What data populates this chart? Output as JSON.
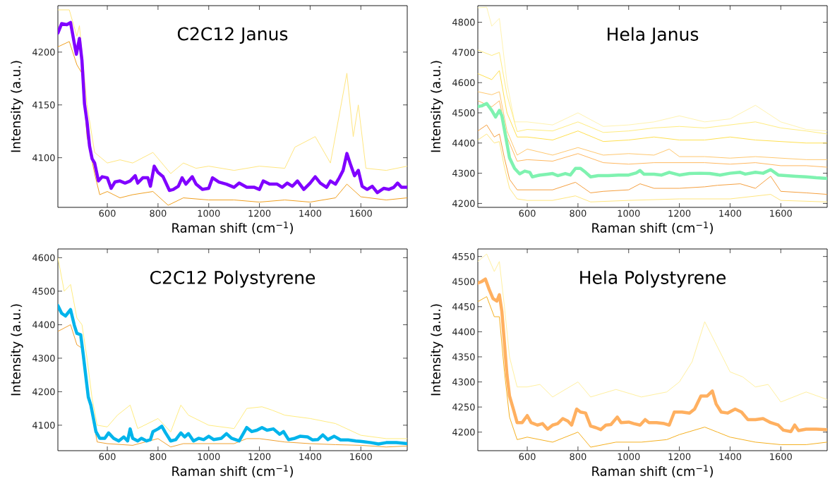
{
  "chart_data": [
    {
      "type": "line",
      "title": "C2C12 Janus",
      "xlabel": "Raman shift (cm$^{−1}$)",
      "ylabel": "Intensity (a.u.)",
      "xlim": [
        405,
        1783
      ],
      "ylim": [
        4053,
        4244
      ],
      "xticks": [
        600,
        800,
        1000,
        1200,
        1400,
        1600
      ],
      "yticks": [
        4100,
        4150,
        4200
      ],
      "x": [
        405,
        420,
        440,
        455,
        470,
        478,
        490,
        500,
        510,
        520,
        530,
        540,
        550,
        565,
        580,
        600,
        615,
        630,
        650,
        670,
        690,
        710,
        720,
        740,
        760,
        770,
        785,
        800,
        820,
        845,
        860,
        880,
        895,
        910,
        935,
        950,
        975,
        1000,
        1015,
        1040,
        1070,
        1100,
        1120,
        1150,
        1180,
        1200,
        1215,
        1240,
        1270,
        1290,
        1310,
        1330,
        1350,
        1375,
        1400,
        1420,
        1440,
        1465,
        1480,
        1500,
        1515,
        1530,
        1545,
        1560,
        1575,
        1590,
        1605,
        1625,
        1645,
        1665,
        1690,
        1710,
        1730,
        1745,
        1760,
        1783
      ],
      "series": [
        {
          "color": "#8000ff",
          "values": [
            4218,
            4227,
            4226,
            4228,
            4208,
            4198,
            4213,
            4192,
            4151,
            4134,
            4111,
            4099,
            4095,
            4078,
            4082,
            4081,
            4071,
            4077,
            4078,
            4076,
            4078,
            4083,
            4076,
            4081,
            4081,
            4073,
            4092,
            4086,
            4082,
            4069,
            4070,
            4073,
            4081,
            4075,
            4082,
            4075,
            4070,
            4071,
            4081,
            4077,
            4075,
            4072,
            4076,
            4072,
            4072,
            4070,
            4078,
            4075,
            4075,
            4072,
            4076,
            4073,
            4078,
            4070,
            4076,
            4082,
            4076,
            4072,
            4078,
            4075,
            4081,
            4088,
            4104,
            4093,
            4083,
            4088,
            4073,
            4070,
            4073,
            4067,
            4071,
            4070,
            4072,
            4076,
            4072,
            4072
          ]
        },
        {
          "color": "#ffe680",
          "x": [
            405,
            450,
            480,
            490,
            520,
            550,
            600,
            650,
            700,
            780,
            850,
            900,
            950,
            1000,
            1050,
            1100,
            1200,
            1300,
            1340,
            1420,
            1480,
            1545,
            1570,
            1590,
            1620,
            1700,
            1783
          ],
          "values": [
            4240,
            4240,
            4215,
            4225,
            4150,
            4105,
            4095,
            4098,
            4095,
            4105,
            4085,
            4095,
            4090,
            4092,
            4090,
            4088,
            4092,
            4090,
            4110,
            4120,
            4095,
            4180,
            4120,
            4150,
            4090,
            4088,
            4092
          ]
        },
        {
          "color": "#f0a020",
          "x": [
            405,
            450,
            480,
            500,
            520,
            550,
            570,
            600,
            650,
            700,
            780,
            840,
            900,
            1000,
            1100,
            1200,
            1300,
            1400,
            1500,
            1545,
            1600,
            1700,
            1783
          ],
          "values": [
            4205,
            4210,
            4188,
            4180,
            4120,
            4085,
            4065,
            4068,
            4062,
            4065,
            4068,
            4055,
            4062,
            4060,
            4060,
            4058,
            4060,
            4058,
            4062,
            4075,
            4063,
            4060,
            4062
          ]
        }
      ]
    },
    {
      "type": "line",
      "title": "Hela Janus",
      "xlabel": "Raman shift (cm$^{−1}$)",
      "ylabel": "Intensity (a.u.)",
      "xlim": [
        405,
        1783
      ],
      "ylim": [
        4187,
        4855
      ],
      "xticks": [
        600,
        800,
        1000,
        1200,
        1400,
        1600
      ],
      "yticks": [
        4200,
        4300,
        4400,
        4500,
        4600,
        4700,
        4800
      ],
      "x": [
        405,
        420,
        440,
        460,
        475,
        490,
        500,
        515,
        530,
        550,
        570,
        590,
        610,
        620,
        650,
        680,
        700,
        720,
        750,
        770,
        790,
        810,
        830,
        850,
        880,
        920,
        960,
        1000,
        1030,
        1045,
        1060,
        1100,
        1130,
        1160,
        1200,
        1240,
        1280,
        1320,
        1360,
        1400,
        1440,
        1460,
        1500,
        1530,
        1560,
        1590,
        1620,
        1660,
        1700,
        1740,
        1783
      ],
      "series": [
        {
          "color": "#7ff2b0",
          "values": [
            4521,
            4523,
            4531,
            4508,
            4486,
            4508,
            4490,
            4421,
            4351,
            4316,
            4298,
            4307,
            4303,
            4288,
            4294,
            4297,
            4299,
            4292,
            4299,
            4294,
            4316,
            4316,
            4303,
            4288,
            4292,
            4292,
            4294,
            4294,
            4301,
            4309,
            4297,
            4297,
            4294,
            4303,
            4294,
            4299,
            4300,
            4299,
            4294,
            4300,
            4303,
            4297,
            4303,
            4300,
            4312,
            4294,
            4292,
            4290,
            4288,
            4285,
            4283
          ]
        },
        {
          "color": "#fff3b0",
          "x": [
            405,
            440,
            460,
            490,
            520,
            550,
            600,
            700,
            800,
            900,
            1000,
            1100,
            1200,
            1300,
            1400,
            1500,
            1600,
            1700,
            1783
          ],
          "values": [
            4848,
            4850,
            4787,
            4813,
            4600,
            4470,
            4470,
            4460,
            4500,
            4455,
            4460,
            4470,
            4490,
            4470,
            4480,
            4525,
            4470,
            4445,
            4440
          ]
        },
        {
          "color": "#ffec80",
          "x": [
            405,
            460,
            490,
            520,
            560,
            600,
            700,
            800,
            900,
            1000,
            1100,
            1200,
            1300,
            1400,
            1500,
            1600,
            1700,
            1783
          ],
          "values": [
            4708,
            4690,
            4700,
            4560,
            4438,
            4445,
            4440,
            4470,
            4435,
            4440,
            4450,
            4455,
            4450,
            4460,
            4470,
            4450,
            4440,
            4430
          ]
        },
        {
          "color": "#ffe050",
          "x": [
            405,
            460,
            490,
            520,
            560,
            600,
            700,
            800,
            900,
            1000,
            1100,
            1200,
            1300,
            1400,
            1500,
            1600,
            1700,
            1783
          ],
          "values": [
            4630,
            4610,
            4640,
            4500,
            4420,
            4420,
            4410,
            4440,
            4405,
            4410,
            4420,
            4410,
            4410,
            4420,
            4410,
            4405,
            4400,
            4400
          ]
        },
        {
          "color": "#ffc870",
          "x": [
            405,
            460,
            490,
            520,
            560,
            600,
            700,
            800,
            900,
            1000,
            1100,
            1160,
            1200,
            1300,
            1400,
            1500,
            1600,
            1700,
            1783
          ],
          "values": [
            4570,
            4560,
            4570,
            4440,
            4360,
            4380,
            4360,
            4385,
            4360,
            4365,
            4360,
            4380,
            4355,
            4355,
            4350,
            4355,
            4350,
            4345,
            4345
          ]
        },
        {
          "color": "#ffb860",
          "x": [
            405,
            460,
            490,
            520,
            560,
            600,
            700,
            800,
            900,
            1000,
            1100,
            1200,
            1300,
            1400,
            1500,
            1600,
            1700,
            1783
          ],
          "values": [
            4540,
            4520,
            4540,
            4420,
            4340,
            4345,
            4340,
            4365,
            4335,
            4330,
            4335,
            4335,
            4335,
            4330,
            4335,
            4325,
            4325,
            4320
          ]
        },
        {
          "color": "#f5a040",
          "x": [
            405,
            440,
            470,
            490,
            510,
            530,
            560,
            600,
            700,
            790,
            850,
            900,
            1000,
            1045,
            1100,
            1200,
            1300,
            1350,
            1440,
            1500,
            1560,
            1600,
            1700,
            1783
          ],
          "values": [
            4440,
            4460,
            4420,
            4430,
            4350,
            4280,
            4245,
            4245,
            4245,
            4270,
            4235,
            4240,
            4245,
            4265,
            4250,
            4250,
            4255,
            4260,
            4265,
            4250,
            4290,
            4240,
            4235,
            4230
          ]
        },
        {
          "color": "#ffe680",
          "x": [
            405,
            440,
            470,
            490,
            510,
            530,
            560,
            600,
            700,
            790,
            850,
            1000,
            1200,
            1400,
            1560,
            1600,
            1783
          ],
          "values": [
            4410,
            4430,
            4400,
            4405,
            4320,
            4250,
            4215,
            4210,
            4210,
            4225,
            4205,
            4210,
            4215,
            4215,
            4230,
            4210,
            4205
          ]
        }
      ]
    },
    {
      "type": "line",
      "title": "C2C12 Polystyrene",
      "xlabel": "Raman shift (cm$^{−1}$)",
      "ylabel": "Intensity (a.u.)",
      "xlim": [
        405,
        1783
      ],
      "ylim": [
        4024,
        4626
      ],
      "xticks": [
        600,
        800,
        1000,
        1200,
        1400,
        1600
      ],
      "yticks": [
        4100,
        4200,
        4300,
        4400,
        4500,
        4600
      ],
      "x": [
        405,
        420,
        435,
        455,
        470,
        480,
        495,
        505,
        515,
        525,
        535,
        545,
        555,
        570,
        590,
        605,
        625,
        645,
        665,
        680,
        690,
        700,
        720,
        735,
        755,
        770,
        780,
        800,
        815,
        830,
        850,
        870,
        890,
        905,
        920,
        940,
        960,
        980,
        1000,
        1020,
        1050,
        1070,
        1090,
        1120,
        1150,
        1170,
        1190,
        1210,
        1230,
        1255,
        1280,
        1295,
        1315,
        1340,
        1360,
        1390,
        1410,
        1430,
        1450,
        1470,
        1495,
        1520,
        1550,
        1580,
        1610,
        1640,
        1670,
        1700,
        1740,
        1783
      ],
      "series": [
        {
          "color": "#00b4eb",
          "values": [
            4457,
            4434,
            4426,
            4445,
            4398,
            4374,
            4370,
            4311,
            4247,
            4184,
            4160,
            4121,
            4081,
            4061,
            4061,
            4077,
            4061,
            4053,
            4065,
            4053,
            4089,
            4061,
            4053,
            4061,
            4053,
            4057,
            4081,
            4089,
            4097,
            4077,
            4053,
            4057,
            4077,
            4065,
            4075,
            4053,
            4061,
            4057,
            4067,
            4057,
            4061,
            4075,
            4061,
            4053,
            4093,
            4081,
            4085,
            4093,
            4085,
            4089,
            4073,
            4081,
            4057,
            4061,
            4067,
            4065,
            4056,
            4057,
            4071,
            4057,
            4067,
            4056,
            4056,
            4053,
            4051,
            4048,
            4044,
            4048,
            4048,
            4045
          ]
        },
        {
          "color": "#ffec80",
          "x": [
            405,
            430,
            455,
            480,
            500,
            520,
            540,
            560,
            600,
            640,
            690,
            720,
            800,
            850,
            890,
            920,
            1000,
            1100,
            1150,
            1210,
            1250,
            1300,
            1400,
            1500,
            1600,
            1700,
            1783
          ],
          "values": [
            4600,
            4500,
            4520,
            4420,
            4400,
            4300,
            4180,
            4100,
            4095,
            4130,
            4160,
            4090,
            4120,
            4080,
            4160,
            4130,
            4100,
            4090,
            4150,
            4155,
            4145,
            4130,
            4120,
            4105,
            4070,
            4060,
            4060
          ]
        },
        {
          "color": "#f0a030",
          "x": [
            405,
            430,
            455,
            480,
            500,
            520,
            540,
            560,
            600,
            700,
            800,
            850,
            900,
            1000,
            1100,
            1150,
            1200,
            1300,
            1400,
            1500,
            1600,
            1700,
            1783
          ],
          "values": [
            4380,
            4390,
            4400,
            4340,
            4330,
            4200,
            4130,
            4050,
            4045,
            4040,
            4060,
            4035,
            4045,
            4045,
            4045,
            4060,
            4060,
            4050,
            4045,
            4042,
            4040,
            4035,
            4038
          ]
        }
      ]
    },
    {
      "type": "line",
      "title": "Hela Polystyrene",
      "xlabel": "Raman shift (cm$^{−1}$)",
      "ylabel": "Intensity (a.u.)",
      "xlim": [
        405,
        1783
      ],
      "ylim": [
        4163,
        4565
      ],
      "xticks": [
        600,
        800,
        1000,
        1200,
        1400,
        1600
      ],
      "yticks": [
        4200,
        4250,
        4300,
        4350,
        4400,
        4450,
        4500,
        4550
      ],
      "x": [
        405,
        420,
        435,
        450,
        465,
        480,
        490,
        500,
        510,
        520,
        530,
        545,
        560,
        580,
        600,
        615,
        640,
        660,
        680,
        700,
        720,
        740,
        760,
        775,
        795,
        810,
        830,
        850,
        870,
        890,
        910,
        930,
        955,
        970,
        1000,
        1020,
        1045,
        1065,
        1080,
        1110,
        1140,
        1160,
        1180,
        1210,
        1240,
        1260,
        1285,
        1310,
        1330,
        1345,
        1365,
        1390,
        1420,
        1445,
        1470,
        1500,
        1530,
        1560,
        1590,
        1610,
        1640,
        1655,
        1670,
        1700,
        1740,
        1783
      ],
      "series": [
        {
          "color": "#ffb060",
          "values": [
            4497,
            4500,
            4505,
            4484,
            4466,
            4461,
            4474,
            4440,
            4377,
            4314,
            4272,
            4246,
            4219,
            4219,
            4233,
            4219,
            4214,
            4217,
            4206,
            4214,
            4217,
            4227,
            4222,
            4214,
            4246,
            4240,
            4238,
            4212,
            4209,
            4205,
            4214,
            4215,
            4230,
            4219,
            4220,
            4217,
            4214,
            4225,
            4219,
            4219,
            4217,
            4214,
            4240,
            4240,
            4238,
            4246,
            4272,
            4272,
            4282,
            4256,
            4240,
            4238,
            4246,
            4240,
            4225,
            4225,
            4227,
            4219,
            4214,
            4204,
            4201,
            4214,
            4203,
            4206,
            4206,
            4205
          ]
        },
        {
          "color": "#fff0a0",
          "x": [
            405,
            440,
            470,
            490,
            510,
            530,
            560,
            600,
            650,
            700,
            800,
            850,
            950,
            1050,
            1150,
            1200,
            1250,
            1300,
            1340,
            1400,
            1450,
            1500,
            1550,
            1600,
            1700,
            1783
          ],
          "values": [
            4540,
            4555,
            4520,
            4540,
            4450,
            4350,
            4290,
            4290,
            4295,
            4270,
            4300,
            4270,
            4285,
            4270,
            4280,
            4300,
            4340,
            4420,
            4380,
            4320,
            4310,
            4290,
            4295,
            4260,
            4280,
            4265
          ]
        },
        {
          "color": "#f5b020",
          "x": [
            405,
            440,
            470,
            490,
            510,
            530,
            560,
            600,
            700,
            800,
            850,
            950,
            1050,
            1150,
            1200,
            1300,
            1350,
            1400,
            1500,
            1600,
            1700,
            1783
          ],
          "values": [
            4460,
            4470,
            4430,
            4430,
            4320,
            4230,
            4185,
            4190,
            4180,
            4200,
            4170,
            4180,
            4180,
            4185,
            4195,
            4210,
            4200,
            4190,
            4180,
            4175,
            4175,
            4180
          ]
        }
      ]
    }
  ]
}
